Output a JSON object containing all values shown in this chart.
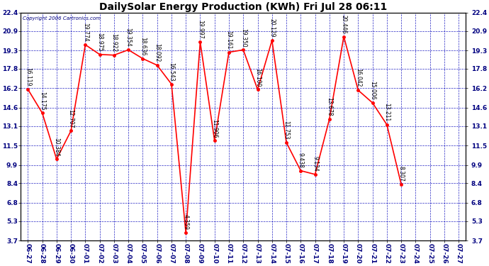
{
  "title": "DailySolar Energy Production (KWh) Fri Jul 28 06:11",
  "copyright": "Copyright 2006 Cartronics.com",
  "x_labels": [
    "06-27",
    "06-28",
    "06-29",
    "06-30",
    "07-01",
    "07-02",
    "07-03",
    "07-04",
    "07-05",
    "07-06",
    "07-07",
    "07-08",
    "07-09",
    "07-10",
    "07-11",
    "07-12",
    "07-13",
    "07-14",
    "07-15",
    "07-16",
    "07-17",
    "07-18",
    "07-19",
    "07-20",
    "07-21",
    "07-22",
    "07-23",
    "07-24",
    "07-25",
    "07-26",
    "07-27"
  ],
  "y_values": [
    16.119,
    14.175,
    10.384,
    12.707,
    19.774,
    18.975,
    18.922,
    19.354,
    18.636,
    18.092,
    16.543,
    4.359,
    19.997,
    11.906,
    19.161,
    19.35,
    16.1,
    20.129,
    11.753,
    9.438,
    9.134,
    13.678,
    20.446,
    16.042,
    15.006,
    13.211,
    8.307,
    null,
    null,
    null,
    null
  ],
  "line_color": "#ff0000",
  "marker_color": "#ff0000",
  "grid_color": "#0000bb",
  "bg_color": "#ffffff",
  "plot_bg_color": "#ffffff",
  "y_tick_values": [
    3.7,
    5.3,
    6.8,
    8.4,
    9.9,
    11.5,
    13.1,
    14.6,
    16.2,
    17.8,
    19.3,
    20.9,
    22.4
  ],
  "y_tick_labels": [
    "3.7",
    "5.3",
    "6.8",
    "8.4",
    "9.9",
    "11.5",
    "13.1",
    "14.6",
    "16.2",
    "17.8",
    "19.3",
    "20.9",
    "22.4"
  ],
  "y_min": 3.7,
  "y_max": 22.4,
  "title_fontsize": 10,
  "annotation_fontsize": 5.5,
  "tick_fontsize": 6.5,
  "copyright_fontsize": 5
}
